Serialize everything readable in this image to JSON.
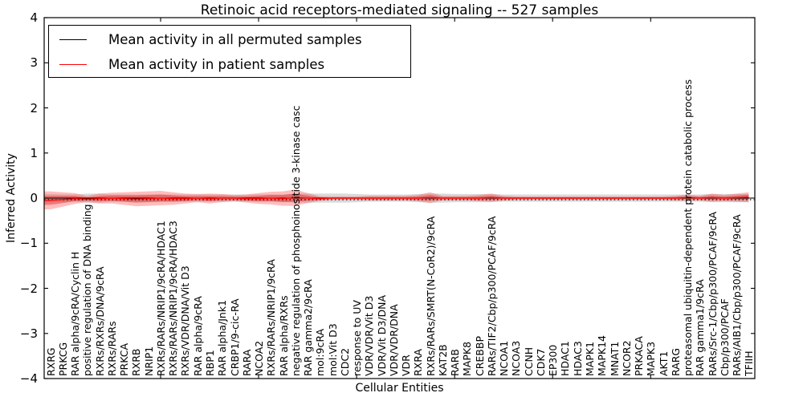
{
  "figure": {
    "title": "Retinoic acid receptors-mediated signaling -- 527 samples",
    "xlabel": "Cellular Entities",
    "ylabel": "Inferred Activity"
  },
  "legend": {
    "items": [
      {
        "label": "Mean activity in all permuted samples",
        "color": "#000000"
      },
      {
        "label": "Mean activity in patient samples",
        "color": "#ff0000"
      }
    ]
  },
  "chart_data": {
    "type": "area",
    "title": "Retinoic acid receptors-mediated signaling -- 527 samples",
    "xlabel": "Cellular Entities",
    "ylabel": "Inferred Activity",
    "ylim": [
      -4,
      4
    ],
    "yticks": [
      4,
      3,
      2,
      1,
      0,
      -1,
      -2,
      -3,
      -4
    ],
    "ytick_labels": [
      "4",
      "3",
      "2",
      "1",
      "0",
      "−1",
      "−2",
      "−3",
      "−4"
    ],
    "xtick_indices": [
      9,
      17,
      25,
      33,
      41,
      49
    ],
    "grid": false,
    "legend_position": "upper left",
    "dotted_line_y": -0.035,
    "colors": {
      "permuted_line": "#000000",
      "patient_line": "#ff0000",
      "permuted_band": "rgba(128,128,128,0.30)",
      "patient_band": "rgba(255,50,50,0.32)",
      "patient_band_core": "rgba(220,40,40,0.45)"
    },
    "categories": [
      "RXRG",
      "PRKCG",
      "RAR alpha/9cRA/Cyclin H",
      "positive regulation of DNA binding",
      "RXRs/RXRs/DNA/9cRA",
      "RXRs/RARs",
      "PRKCA",
      "RXRB",
      "NRIP1",
      "RXRs/RARs/NRIP1/9cRA/HDAC1",
      "RXRs/RARs/NRIP1/9cRA/HDAC3",
      "RXRs/VDR/DNA/Vit D3",
      "RAR alpha/9cRA",
      "RBP1",
      "RAR alpha/Jnk1",
      "CRBP1/9-cic-RA",
      "RARA",
      "NCOA2",
      "RXRs/RARs/NRIP1/9cRA",
      "RAR alpha/RXRs",
      "negative regulation of phosphoinositide 3-kinase casc",
      "RAR gamma2/9cRA",
      "mol:9cRA",
      "mol:Vit D3",
      "CDC2",
      "response to UV",
      "VDR/VDR/Vit D3",
      "VDR/Vit D3/DNA",
      "VDR/VDR/DNA",
      "VDR",
      "RXRA",
      "RXRs/RARs/SMRT(N-CoR2)/9cRA",
      "KAT2B",
      "RARB",
      "MAPK8",
      "CREBBP",
      "RARs/TIF2/Cbp/p300/PCAF/9cRA",
      "NCOA1",
      "NCOA3",
      "CCNH",
      "CDK7",
      "EP300",
      "HDAC1",
      "HDAC3",
      "MAPK1",
      "MAPK14",
      "MNAT1",
      "NCOR2",
      "PRKACA",
      "MAPK3",
      "AKT1",
      "RARG",
      "proteasomal ubiquitin-dependent protein catabolic process",
      "RAR gamma1/9cRA",
      "RARs/Src-1/Cbp/p300/PCAF/9cRA",
      "Cbp/p300/PCAF",
      "RARs/AIB1/Cbp/p300/PCAF/9cRA",
      "TFIIH"
    ],
    "series": [
      {
        "name": "Mean activity in all permuted samples",
        "mean": 0,
        "std": [
          0.09,
          0.08,
          0.08,
          0.1,
          0.1,
          0.08,
          0.08,
          0.08,
          0.08,
          0.08,
          0.08,
          0.08,
          0.08,
          0.08,
          0.08,
          0.08,
          0.08,
          0.08,
          0.08,
          0.08,
          0.1,
          0.1,
          0.1,
          0.1,
          0.1,
          0.09,
          0.08,
          0.08,
          0.08,
          0.08,
          0.09,
          0.1,
          0.1,
          0.09,
          0.09,
          0.09,
          0.09,
          0.08,
          0.08,
          0.08,
          0.08,
          0.08,
          0.08,
          0.08,
          0.08,
          0.08,
          0.08,
          0.08,
          0.08,
          0.08,
          0.08,
          0.08,
          0.08,
          0.08,
          0.09,
          0.09,
          0.09,
          0.09
        ]
      },
      {
        "name": "Mean activity in patient samples",
        "mean": [
          -0.05,
          -0.03,
          -0.01,
          -0.02,
          -0.01,
          0,
          -0.01,
          -0.02,
          -0.01,
          0,
          -0.01,
          -0.01,
          0,
          -0.01,
          0,
          0,
          -0.01,
          -0.01,
          0,
          -0.01,
          0.01,
          0,
          -0.01,
          0,
          0,
          0,
          0,
          0,
          0,
          0,
          0,
          0.01,
          0,
          0,
          0,
          0,
          0.01,
          0,
          0,
          0,
          0,
          0,
          0,
          0,
          0,
          0,
          0,
          0,
          0,
          0,
          0,
          0,
          0.01,
          0,
          0.01,
          0,
          0.01,
          0.02
        ],
        "std": [
          0.2,
          0.16,
          0.12,
          0.07,
          0.11,
          0.12,
          0.14,
          0.16,
          0.16,
          0.16,
          0.14,
          0.11,
          0.09,
          0.11,
          0.09,
          0.07,
          0.09,
          0.12,
          0.14,
          0.16,
          0.18,
          0.11,
          0.05,
          0.035,
          0.035,
          0.035,
          0.05,
          0.05,
          0.05,
          0.05,
          0.07,
          0.12,
          0.05,
          0.05,
          0.05,
          0.07,
          0.09,
          0.05,
          0.035,
          0.035,
          0.035,
          0.035,
          0.035,
          0.035,
          0.035,
          0.035,
          0.035,
          0.035,
          0.035,
          0.035,
          0.035,
          0.05,
          0.07,
          0.05,
          0.09,
          0.07,
          0.09,
          0.11
        ]
      }
    ]
  }
}
